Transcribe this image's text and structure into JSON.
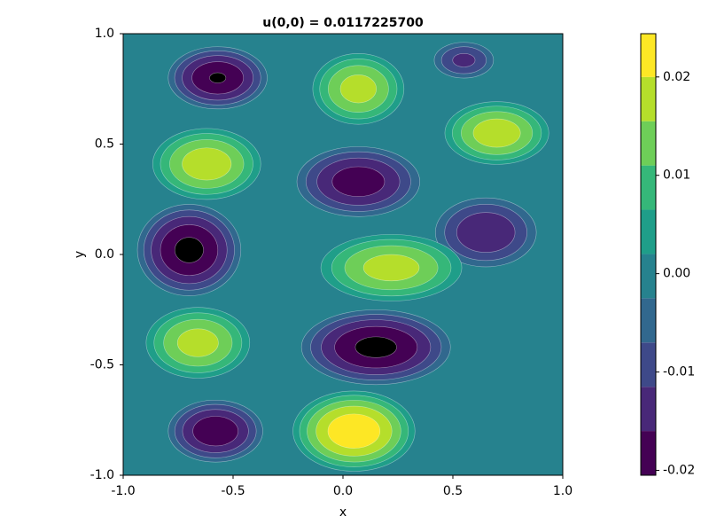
{
  "chart_data": {
    "type": "contour",
    "title": "u(0,0) = 0.0117225700",
    "x_label": "x",
    "y_label": "y",
    "xlim": [
      -1.0,
      1.0
    ],
    "ylim": [
      -1.0,
      1.0
    ],
    "xticks": [
      {
        "value": -1.0,
        "label": "-1.0"
      },
      {
        "value": -0.5,
        "label": "-0.5"
      },
      {
        "value": 0.0,
        "label": "0.0"
      },
      {
        "value": 0.5,
        "label": "0.5"
      },
      {
        "value": 1.0,
        "label": "1.0"
      }
    ],
    "yticks": [
      {
        "value": -1.0,
        "label": "-1.0"
      },
      {
        "value": -0.5,
        "label": "-0.5"
      },
      {
        "value": 0.0,
        "label": "0.0"
      },
      {
        "value": 0.5,
        "label": "0.5"
      },
      {
        "value": 1.0,
        "label": "1.0"
      }
    ],
    "levels": [
      -0.0205,
      -0.016,
      -0.0115,
      -0.007,
      -0.0025,
      0.002,
      0.0065,
      0.011,
      0.0155,
      0.02,
      0.0244
    ],
    "colors": [
      "#440154",
      "#482878",
      "#3e4989",
      "#31688e",
      "#26828e",
      "#1f9e89",
      "#35b779",
      "#6ece58",
      "#b5de2b",
      "#fde725"
    ],
    "colorbar_ticks": [
      -0.02,
      -0.01,
      {
        "value": 0,
        "label": "0.00"
      },
      0.01,
      0.02
    ],
    "peaks": [
      {
        "x": -0.57,
        "y": 0.8,
        "value": -0.021,
        "rx": 0.24,
        "ry": 0.15
      },
      {
        "x": 0.07,
        "y": 0.75,
        "value": 0.018,
        "rx": 0.22,
        "ry": 0.17
      },
      {
        "x": 0.55,
        "y": 0.88,
        "value": -0.013,
        "rx": 0.15,
        "ry": 0.09
      },
      {
        "x": 0.7,
        "y": 0.55,
        "value": 0.019,
        "rx": 0.25,
        "ry": 0.15
      },
      {
        "x": -0.62,
        "y": 0.41,
        "value": 0.019,
        "rx": 0.26,
        "ry": 0.17
      },
      {
        "x": 0.07,
        "y": 0.33,
        "value": -0.019,
        "rx": 0.3,
        "ry": 0.17
      },
      {
        "x": 0.65,
        "y": 0.1,
        "value": -0.016,
        "rx": 0.25,
        "ry": 0.17
      },
      {
        "x": -0.7,
        "y": 0.02,
        "value": -0.022,
        "rx": 0.25,
        "ry": 0.22
      },
      {
        "x": 0.22,
        "y": -0.06,
        "value": 0.018,
        "rx": 0.34,
        "ry": 0.16
      },
      {
        "x": -0.66,
        "y": -0.4,
        "value": 0.018,
        "rx": 0.25,
        "ry": 0.17
      },
      {
        "x": 0.15,
        "y": -0.42,
        "value": -0.022,
        "rx": 0.36,
        "ry": 0.18
      },
      {
        "x": -0.58,
        "y": -0.8,
        "value": -0.02,
        "rx": 0.23,
        "ry": 0.15
      },
      {
        "x": 0.05,
        "y": -0.8,
        "value": 0.024,
        "rx": 0.29,
        "ry": 0.19
      }
    ]
  }
}
